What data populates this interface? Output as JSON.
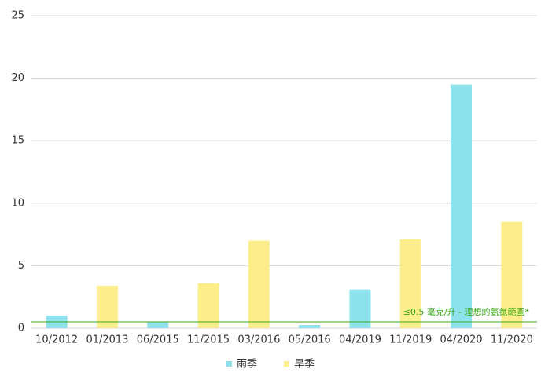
{
  "chart_data": {
    "type": "bar",
    "categories": [
      "10/2012",
      "01/2013",
      "06/2015",
      "11/2015",
      "03/2016",
      "05/2016",
      "04/2019",
      "11/2019",
      "04/2020",
      "11/2020"
    ],
    "series": [
      {
        "name": "雨季",
        "color": "#8ee2ec",
        "values": [
          1.0,
          null,
          0.5,
          null,
          null,
          0.25,
          3.1,
          null,
          19.5,
          null
        ]
      },
      {
        "name": "旱季",
        "color": "#fdee8b",
        "values": [
          null,
          3.4,
          null,
          3.6,
          7.0,
          null,
          null,
          7.1,
          null,
          8.5
        ]
      }
    ],
    "ylim": [
      0,
      25
    ],
    "yticks": [
      0,
      5,
      10,
      15,
      20,
      25
    ],
    "grid": true,
    "legend": "bottom",
    "reference_line": {
      "value": 0.5,
      "label": "≤0.5 毫克/升 - 理想的氨氮範圍*",
      "color": "#3aa815"
    }
  }
}
